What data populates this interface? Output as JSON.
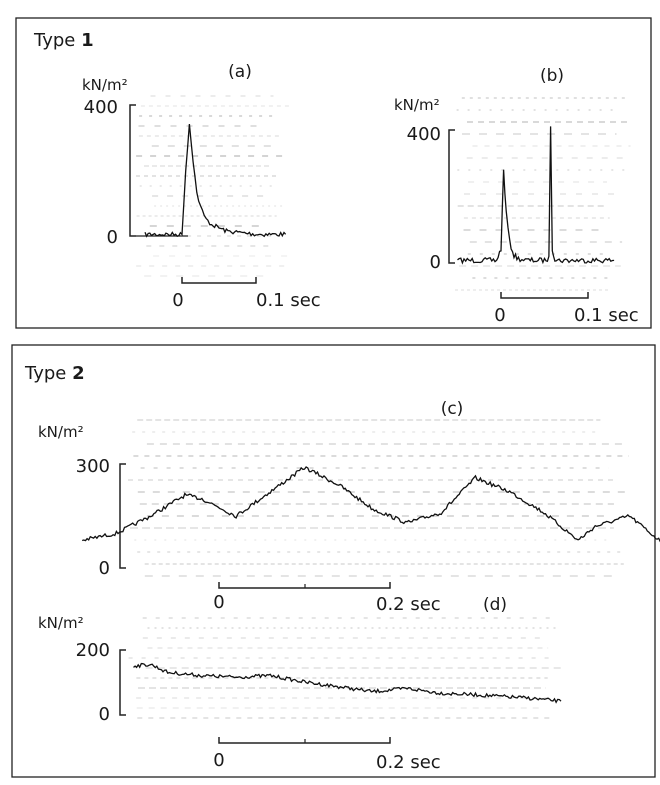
{
  "panels": [
    {
      "title": "Type",
      "number": "1"
    },
    {
      "title": "Type",
      "number": "2"
    }
  ],
  "chart_data": [
    {
      "id": "a",
      "label": "(a)",
      "type": "line",
      "ylabel": "kN/m²",
      "yticks": [
        "400",
        "0"
      ],
      "ylim": [
        0,
        400
      ],
      "time_scale": {
        "labels": [
          "0",
          "0.1 sec"
        ],
        "span_s": 0.1
      },
      "x": [
        -0.05,
        0,
        0.005,
        0.01,
        0.015,
        0.02,
        0.025,
        0.03,
        0.035,
        0.04,
        0.05,
        0.06,
        0.08,
        0.1,
        0.12,
        0.14
      ],
      "y": [
        5,
        5,
        200,
        340,
        230,
        130,
        90,
        60,
        45,
        35,
        25,
        15,
        10,
        5,
        5,
        5
      ]
    },
    {
      "id": "b",
      "label": "(b)",
      "type": "line",
      "ylabel": "kN/m²",
      "yticks": [
        "400",
        "0"
      ],
      "ylim": [
        0,
        400
      ],
      "time_scale": {
        "labels": [
          "0",
          "0.1 sec"
        ],
        "span_s": 0.1
      },
      "x": [
        -0.05,
        -0.005,
        0,
        0.003,
        0.006,
        0.01,
        0.015,
        0.02,
        0.03,
        0.05,
        0.055,
        0.057,
        0.059,
        0.062,
        0.065,
        0.08,
        0.1,
        0.13
      ],
      "y": [
        5,
        5,
        40,
        280,
        150,
        60,
        20,
        10,
        5,
        5,
        10,
        420,
        40,
        10,
        5,
        5,
        5,
        5
      ]
    },
    {
      "id": "c",
      "label": "(c)",
      "type": "line",
      "ylabel": "kN/m²",
      "yticks": [
        "300",
        "0"
      ],
      "ylim": [
        0,
        300
      ],
      "time_scale": {
        "labels": [
          "0",
          "0.2 sec"
        ],
        "span_s": 0.2
      },
      "x": [
        -0.16,
        -0.12,
        -0.08,
        -0.04,
        -0.02,
        0.02,
        0.06,
        0.1,
        0.14,
        0.18,
        0.22,
        0.26,
        0.3,
        0.34,
        0.38,
        0.42,
        0.44,
        0.48,
        0.52
      ],
      "y": [
        80,
        100,
        150,
        210,
        200,
        150,
        220,
        290,
        240,
        170,
        130,
        160,
        260,
        220,
        160,
        80,
        120,
        150,
        70
      ]
    },
    {
      "id": "d",
      "label": "(d)",
      "type": "line",
      "ylabel": "kN/m²",
      "yticks": [
        "200",
        "0"
      ],
      "ylim": [
        0,
        200
      ],
      "time_scale": {
        "labels": [
          "0",
          "0.2 sec"
        ],
        "span_s": 0.2
      },
      "x": [
        -0.1,
        -0.08,
        -0.06,
        -0.02,
        0.02,
        0.06,
        0.1,
        0.14,
        0.18,
        0.22,
        0.26,
        0.3,
        0.36,
        0.4
      ],
      "y": [
        150,
        155,
        130,
        120,
        115,
        120,
        100,
        85,
        70,
        80,
        65,
        60,
        50,
        40
      ]
    }
  ]
}
